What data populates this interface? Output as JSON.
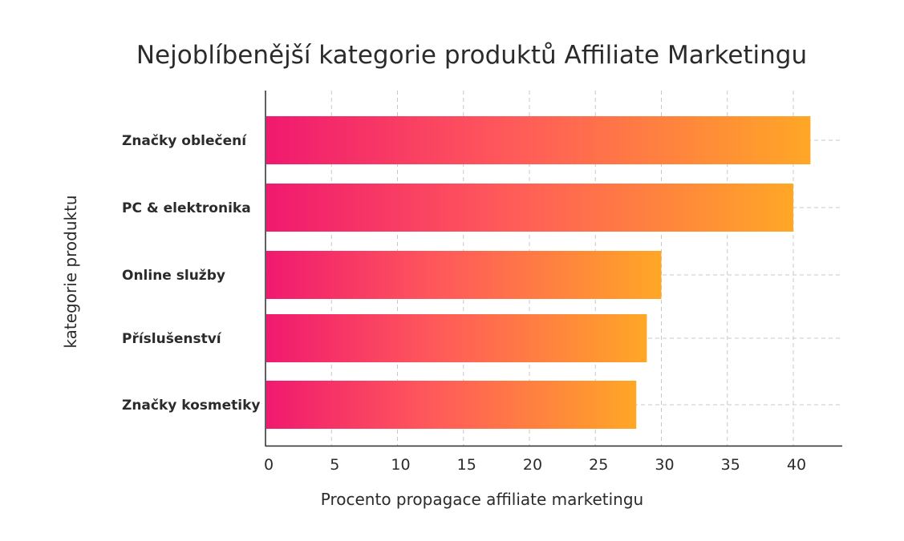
{
  "chart_data": {
    "type": "bar",
    "orientation": "horizontal",
    "title": "Nejoblíbenější kategorie produktů Affiliate Marketingu",
    "xlabel": "Procento propagace affiliate marketingu",
    "ylabel": "kategorie produktu",
    "categories": [
      "Značky oblečení",
      "PC & elektronika",
      "Online služby",
      "Příslušenství",
      "Značky kosmetiky"
    ],
    "values": [
      41.3,
      40,
      30,
      28.9,
      28.1
    ],
    "xlim": [
      0,
      43.5
    ],
    "xticks": [
      "0",
      "5",
      "10",
      "15",
      "20",
      "25",
      "30",
      "35",
      "40"
    ],
    "grid": true,
    "colors": {
      "gradient_start": "#f0196f",
      "gradient_mid": "#ff5a5a",
      "gradient_end": "#ffa726",
      "text": "#2b2b2b",
      "grid": "#c8c8c8"
    }
  }
}
